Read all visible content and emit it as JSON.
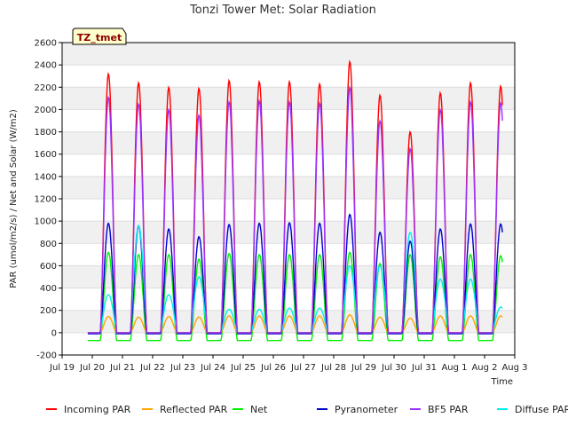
{
  "chart_data": {
    "type": "line",
    "title": "Tonzi Tower Met: Solar Radiation",
    "xlabel": "Time",
    "ylabel": "PAR (umol/m2/s) / Net and Solar (W/m2)",
    "ylim": [
      -200,
      2600
    ],
    "yticks": [
      -200,
      0,
      200,
      400,
      600,
      800,
      1000,
      1200,
      1400,
      1600,
      1800,
      2000,
      2200,
      2400,
      2600
    ],
    "xlim": [
      "Jul 19",
      "Aug 3"
    ],
    "xticks": [
      "Jul 19",
      "Jul 20",
      "Jul 21",
      "Jul 22",
      "Jul 23",
      "Jul 24",
      "Jul 25",
      "Jul 26",
      "Jul 27",
      "Jul 28",
      "Jul 29",
      "Jul 30",
      "Jul 31",
      "Aug 1",
      "Aug 2",
      "Aug 3"
    ],
    "grid": true,
    "legend_position": "bottom",
    "annotation": "TZ_tmet",
    "days": [
      "Jul 20",
      "Jul 21",
      "Jul 22",
      "Jul 23",
      "Jul 24",
      "Jul 25",
      "Jul 26",
      "Jul 27",
      "Jul 28",
      "Jul 29",
      "Jul 30",
      "Jul 31",
      "Aug 1",
      "Aug 2"
    ],
    "series": [
      {
        "name": "Incoming PAR",
        "color": "#ff0000",
        "night": 0,
        "daily_peak": [
          2320,
          2240,
          2200,
          2190,
          2260,
          2250,
          2250,
          2230,
          2430,
          2130,
          1800,
          2150,
          2240,
          2210
        ]
      },
      {
        "name": "Reflected PAR",
        "color": "#ffa500",
        "night": 0,
        "daily_peak": [
          145,
          140,
          145,
          140,
          150,
          150,
          150,
          150,
          160,
          140,
          130,
          150,
          150,
          150
        ]
      },
      {
        "name": "Net",
        "color": "#00ee00",
        "night": -70,
        "daily_peak": [
          720,
          700,
          700,
          660,
          710,
          700,
          700,
          700,
          720,
          620,
          700,
          680,
          700,
          690
        ]
      },
      {
        "name": "Pyranometer",
        "color": "#0000cc",
        "night": -10,
        "daily_peak": [
          980,
          960,
          930,
          860,
          970,
          980,
          985,
          980,
          1060,
          900,
          820,
          930,
          975,
          975
        ]
      },
      {
        "name": "BF5 PAR",
        "color": "#9933ff",
        "night": 0,
        "daily_peak": [
          2110,
          2050,
          2000,
          1950,
          2070,
          2080,
          2070,
          2060,
          2200,
          1900,
          1650,
          2000,
          2070,
          2060
        ]
      },
      {
        "name": "Diffuse PAR",
        "color": "#00eeee",
        "night": 0,
        "daily_peak": [
          340,
          960,
          340,
          500,
          210,
          210,
          220,
          220,
          600,
          600,
          900,
          480,
          480,
          230
        ]
      }
    ]
  }
}
